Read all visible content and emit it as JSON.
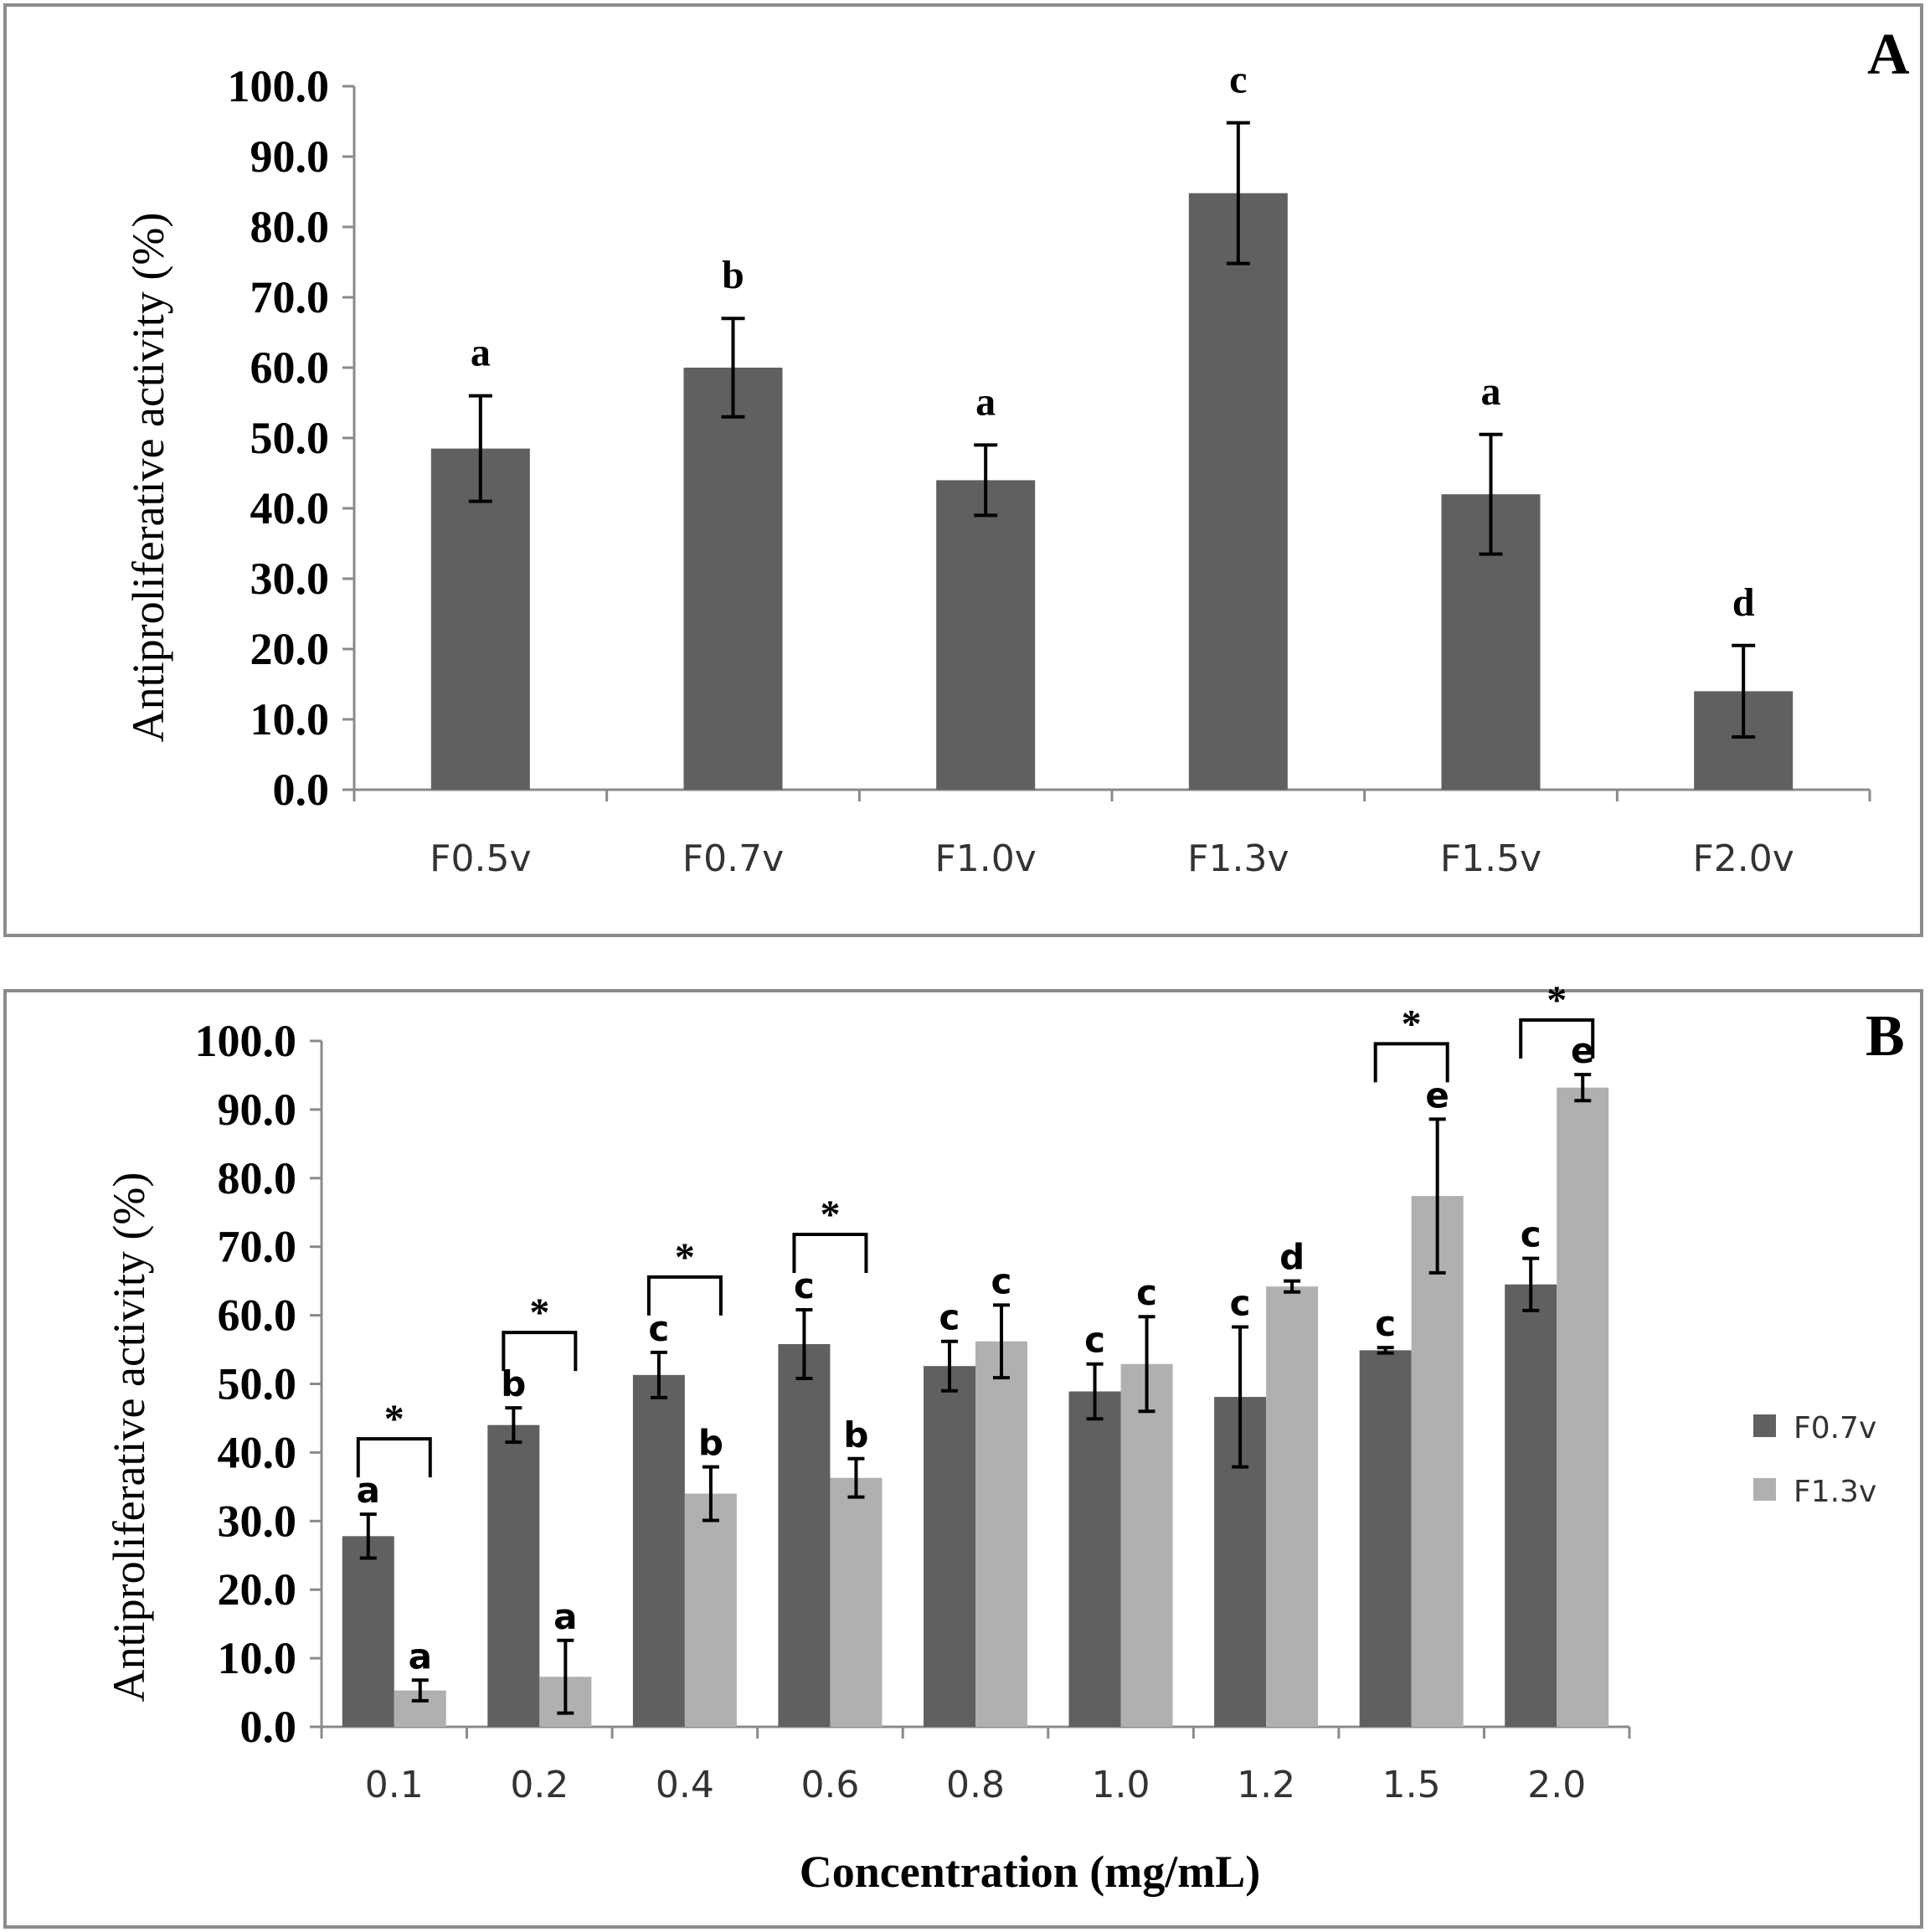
{
  "chart_data": [
    {
      "type": "bar",
      "panel_label": "A",
      "ylabel": "Antiproliferative activity (%)",
      "xlabel": "",
      "ylim": [
        0,
        100
      ],
      "yticks": [
        "0.0",
        "10.0",
        "20.0",
        "30.0",
        "40.0",
        "50.0",
        "60.0",
        "70.0",
        "80.0",
        "90.0",
        "100.0"
      ],
      "categories": [
        "F0.5v",
        "F0.7v",
        "F1.0v",
        "F1.3v",
        "F1.5v",
        "F2.0v"
      ],
      "values": [
        48.5,
        60.0,
        44.0,
        84.8,
        42.0,
        14.0
      ],
      "errors": [
        7.5,
        7.0,
        5.0,
        10.0,
        8.5,
        6.5
      ],
      "significance_letters": [
        "a",
        "b",
        "a",
        "c",
        "a",
        "d"
      ],
      "colors": {
        "bar": "#606060"
      }
    },
    {
      "type": "bar",
      "panel_label": "B",
      "ylabel": "Antiproliferative activity (%)",
      "xlabel": "Concentration (mg/mL)",
      "ylim": [
        0,
        100
      ],
      "yticks": [
        "0.0",
        "10.0",
        "20.0",
        "30.0",
        "40.0",
        "50.0",
        "60.0",
        "70.0",
        "80.0",
        "90.0",
        "100.0"
      ],
      "categories": [
        "0.1",
        "0.2",
        "0.4",
        "0.6",
        "0.8",
        "1.0",
        "1.2",
        "1.5",
        "2.0"
      ],
      "legend_position": "right",
      "series": [
        {
          "name": "F0.7v",
          "color": "#606060",
          "values": [
            27.8,
            44.0,
            51.3,
            55.8,
            52.6,
            48.9,
            48.1,
            54.9,
            64.5
          ],
          "errors": [
            3.2,
            2.5,
            3.3,
            5.0,
            3.6,
            4.0,
            10.2,
            0.4,
            3.8
          ],
          "letters": [
            "a",
            "b",
            "c",
            "c",
            "c",
            "c",
            "c",
            "c",
            "c"
          ]
        },
        {
          "name": "F1.3v",
          "color": "#b0b0b0",
          "values": [
            5.3,
            7.3,
            34.0,
            36.3,
            56.2,
            52.9,
            64.2,
            77.4,
            93.2
          ],
          "errors": [
            1.5,
            5.3,
            3.9,
            2.8,
            5.3,
            6.9,
            0.8,
            11.2,
            1.9
          ],
          "letters": [
            "a",
            "a",
            "b",
            "b",
            "c",
            "c",
            "d",
            "e",
            "e"
          ]
        }
      ],
      "significance_marker": "*",
      "significant_pairs": [
        true,
        true,
        true,
        true,
        false,
        false,
        false,
        true,
        true
      ]
    }
  ]
}
